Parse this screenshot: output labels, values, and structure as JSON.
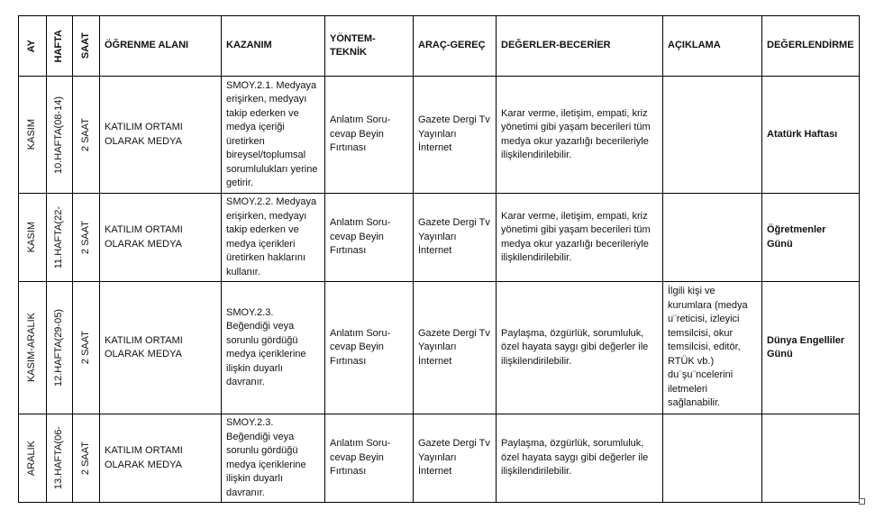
{
  "headers": {
    "ay": "AY",
    "hafta": "HAFTA",
    "saat": "SAAT",
    "ogrenme": "ÖĞRENME  ALANI",
    "kazanim": "KAZANIM",
    "yontem": "YÖNTEM-TEKNİK",
    "arac": "ARAÇ-GEREÇ",
    "degerler": "DEĞERLER-BECERİER",
    "aciklama": "AÇIKLAMA",
    "degerlendirme": "DEĞERLENDİRME"
  },
  "rows": [
    {
      "ay": "KASIM",
      "hafta": "10.HAFTA(08-14)",
      "saat": "2 SAAT",
      "ogrenme": "KATILIM ORTAMI OLARAK MEDYA",
      "kazanim": "SMOY.2.1. Medyaya erişirken, medyayı takip ederken ve medya içeriği üretirken bireysel/toplumsal sorumlulukları yerine getirir.",
      "yontem": "Anlatım Soru-cevap Beyin Fırtınası",
      "arac": "Gazete Dergi Tv Yayınları İnternet",
      "degerler": "Karar verme, iletişim, empati, kriz yönetimi gibi yaşam becerileri tüm medya okur yazarlığı becerileriyle ilişkilendirilebilir.",
      "aciklama": "",
      "degerlendirme": "Atatürk Haftası"
    },
    {
      "ay": "KASIM",
      "hafta": "11.HAFTA(22-",
      "saat": "2 SAAT",
      "ogrenme": "KATILIM ORTAMI OLARAK MEDYA",
      "kazanim": "SMOY.2.2. Medyaya erişirken, medyayı takip ederken ve medya içerikleri üretirken haklarını kullanır.",
      "yontem": "Anlatım Soru-cevap Beyin Fırtınası",
      "arac": "Gazete Dergi Tv Yayınları İnternet",
      "degerler": "Karar verme, iletişim, empati, kriz yönetimi gibi yaşam becerileri tüm medya okur yazarlığı becerileriyle ilişkilendirilebilir.",
      "aciklama": "",
      "degerlendirme": "Öğretmenler Günü"
    },
    {
      "ay": "KASIM-ARALIK",
      "hafta": "12.HAFTA(29-05)",
      "saat": "2 SAAT",
      "ogrenme": "KATILIM ORTAMI OLARAK MEDYA",
      "kazanim": "SMOY.2.3. Beğendiği veya sorunlu gördüğü medya içeriklerine ilişkin duyarlı davranır.",
      "yontem": "Anlatım Soru-cevap Beyin Fırtınası",
      "arac": "Gazete Dergi Tv Yayınları İnternet",
      "degerler": "Paylaşma, özgürlük, sorumluluk, özel hayata saygı gibi değerler ile ilişkilendirilebilir.",
      "aciklama": "İlgili kişi ve kurumlara (medya u¨reticisi, izleyici temsilcisi, okur temsilcisi, editör, RTÜK vb.) du¨şu¨ncelerini iletmeleri sağlanabilir.",
      "degerlendirme": "Dünya Engelliler Günü"
    },
    {
      "ay": "ARALIK",
      "hafta": "13.HAFTA(06-",
      "saat": "2 SAAT",
      "ogrenme": "KATILIM ORTAMI OLARAK MEDYA",
      "kazanim": "SMOY.2.3. Beğendiği veya sorunlu gördüğü medya içeriklerine ilişkin duyarlı davranır.",
      "yontem": "Anlatım Soru-cevap Beyin Fırtınası",
      "arac": "Gazete Dergi Tv Yayınları İnternet",
      "degerler": "Paylaşma, özgürlük, sorumluluk, özel hayata saygı gibi değerler ile ilişkilendirilebilir.",
      "aciklama": "",
      "degerlendirme": ""
    }
  ]
}
